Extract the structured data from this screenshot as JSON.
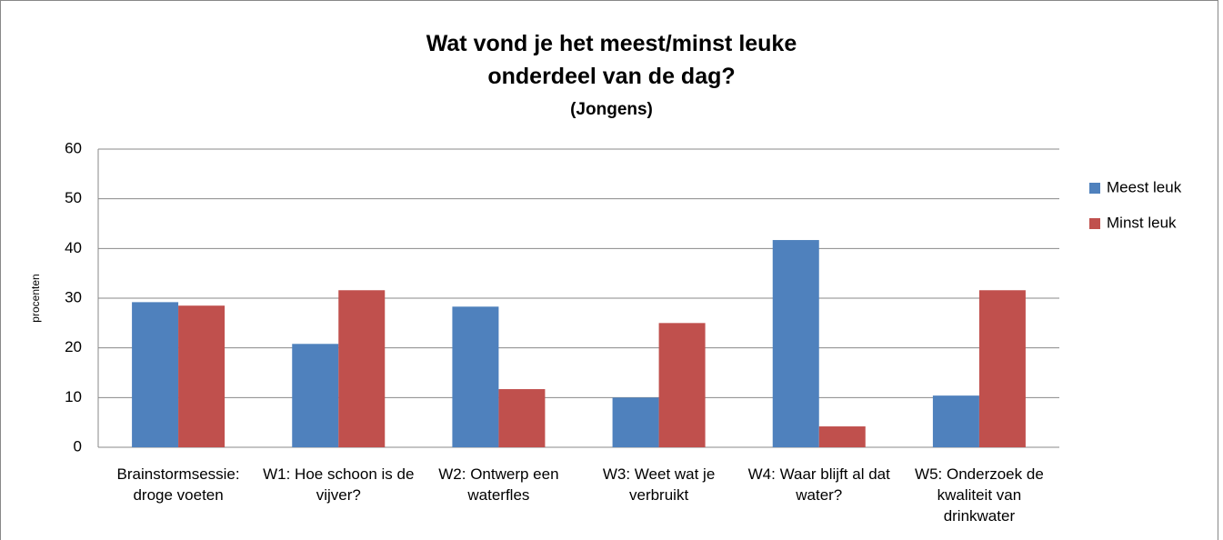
{
  "chart_data": {
    "type": "bar",
    "title": "Wat vond je het meest/minst leuke onderdeel van de dag?",
    "subtitle": "(Jongens)",
    "y_label": "procenten",
    "categories": [
      "Brainstormsessie: droge voeten",
      "W1: Hoe schoon is de vijver?",
      "W2: Ontwerp een waterfles",
      "W3: Weet wat je verbruikt",
      "W4: Waar blijft al dat water?",
      "W5: Onderzoek de kwaliteit van drinkwater"
    ],
    "series": [
      {
        "name": "Meest leuk",
        "color": "#4f81bd",
        "values": [
          29.2,
          20.8,
          28.3,
          10,
          41.7,
          10.4
        ]
      },
      {
        "name": "Minst leuk",
        "color": "#c0504d",
        "values": [
          28.5,
          31.6,
          11.7,
          25,
          4.2,
          31.6
        ]
      }
    ],
    "ylim": [
      0,
      60
    ],
    "yticks": [
      0,
      10,
      20,
      30,
      40,
      50,
      60
    ],
    "grid": true,
    "legend": "right"
  }
}
